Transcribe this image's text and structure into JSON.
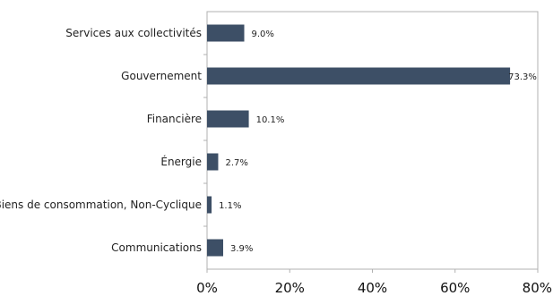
{
  "chart_data": {
    "type": "bar",
    "orientation": "horizontal",
    "categories": [
      "Services aux collectivités",
      "Gouvernement",
      "Financière",
      "Énergie",
      "Biens de consommation, Non-Cyclique",
      "Communications"
    ],
    "values": [
      9.0,
      73.3,
      10.1,
      2.7,
      1.1,
      3.9
    ],
    "data_labels": [
      "9.0%",
      "73.3%",
      "10.1%",
      "2.7%",
      "1.1%",
      "3.9%"
    ],
    "x_ticks": [
      "0%",
      "20%",
      "40%",
      "60%",
      "80%"
    ],
    "x_tick_values": [
      0,
      20,
      40,
      60,
      80
    ],
    "xlim": [
      0,
      80
    ],
    "grid": false,
    "legend": "none",
    "bar_color": "#3d4f66",
    "axis_color": "#b0b0b0"
  }
}
